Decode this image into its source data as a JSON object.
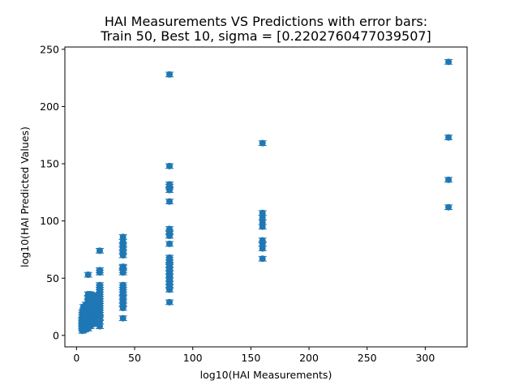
{
  "chart_data": {
    "type": "scatter",
    "title": "HAI Measurements VS Predictions with error bars:",
    "subtitle": "Train 50, Best 10, sigma = [0.2202760477039507]",
    "xlabel": "log10(HAI Measurements)",
    "ylabel": "log10(HAI Predicted Values)",
    "xlim": [
      -10,
      336
    ],
    "ylim": [
      -10,
      252
    ],
    "xticks": [
      0,
      50,
      100,
      150,
      200,
      250,
      300
    ],
    "yticks": [
      0,
      50,
      100,
      150,
      200,
      250
    ],
    "grid": false,
    "error_bar_halfwidth": 2,
    "color": "#1f77b4",
    "points": [
      {
        "x": 5,
        "ys": [
          4,
          6,
          7,
          8,
          9,
          10,
          11,
          12,
          13,
          14,
          16,
          18,
          20
        ]
      },
      {
        "x": 6,
        "ys": [
          5,
          7,
          9,
          10,
          12,
          14,
          15,
          17,
          19,
          22,
          25
        ]
      },
      {
        "x": 7,
        "ys": [
          5,
          6,
          8,
          10,
          11,
          13,
          15,
          16,
          18,
          20
        ]
      },
      {
        "x": 8,
        "ys": [
          6,
          8,
          9,
          11,
          13,
          15,
          17,
          19,
          21,
          24,
          27
        ]
      },
      {
        "x": 10,
        "ys": [
          6,
          8,
          10,
          12,
          14,
          16,
          18,
          20,
          23,
          26,
          30,
          33,
          36,
          53
        ]
      },
      {
        "x": 12,
        "ys": [
          8,
          10,
          12,
          14,
          17,
          19,
          22,
          25,
          28,
          32,
          36
        ]
      },
      {
        "x": 15,
        "ys": [
          10,
          12,
          15,
          18,
          20,
          22,
          25,
          28,
          31,
          35
        ]
      },
      {
        "x": 20,
        "ys": [
          8,
          12,
          15,
          18,
          20,
          22,
          24,
          26,
          28,
          30,
          32,
          34,
          36,
          38,
          40,
          42,
          44,
          55,
          57,
          74
        ]
      },
      {
        "x": 40,
        "ys": [
          15,
          24,
          27,
          30,
          33,
          36,
          38,
          40,
          42,
          44,
          55,
          57,
          59,
          60,
          70,
          73,
          76,
          79,
          82,
          86
        ]
      },
      {
        "x": 80,
        "ys": [
          29,
          40,
          43,
          46,
          49,
          52,
          55,
          58,
          61,
          64,
          66,
          68,
          80,
          87,
          90,
          93,
          117,
          127,
          130,
          132,
          148,
          228
        ]
      },
      {
        "x": 160,
        "ys": [
          67,
          76,
          80,
          83,
          95,
          99,
          103,
          107,
          168
        ]
      },
      {
        "x": 320,
        "ys": [
          112,
          136,
          173,
          239
        ]
      }
    ]
  }
}
